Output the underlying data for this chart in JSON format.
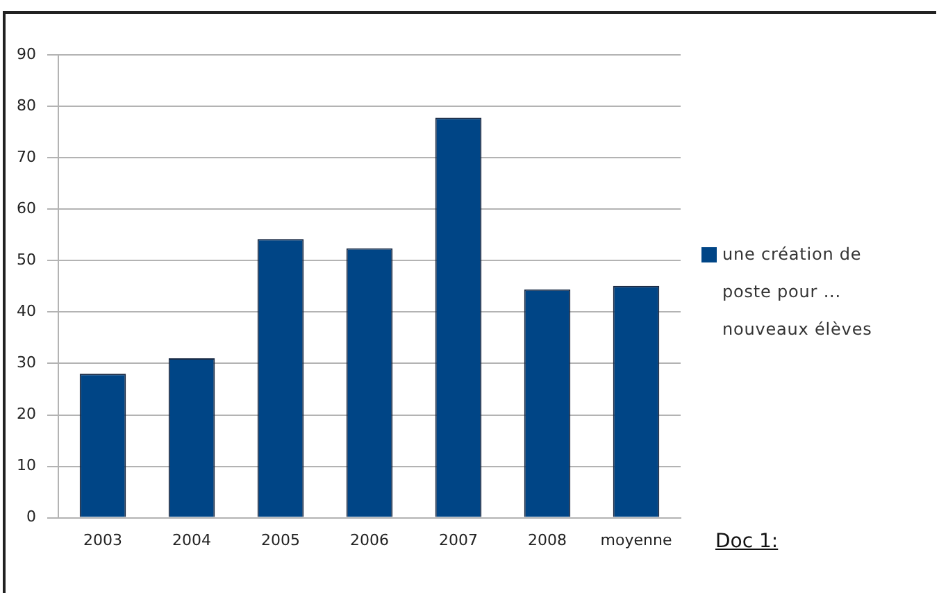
{
  "chart_data": {
    "type": "bar",
    "categories": [
      "2003",
      "2004",
      "2005",
      "2006",
      "2007",
      "2008",
      "moyenne"
    ],
    "series": [
      {
        "name": "une création de poste pour ... nouveaux élèves",
        "color": "#004586",
        "values": [
          28,
          31,
          54.2,
          52.4,
          77.8,
          44.4,
          45.1
        ]
      }
    ],
    "ylim": [
      0,
      90
    ],
    "yticks": [
      0,
      10,
      20,
      30,
      40,
      50,
      60,
      70,
      80,
      90
    ],
    "grid": "y",
    "legend": "right",
    "annotations": [
      "Doc 1:"
    ]
  }
}
